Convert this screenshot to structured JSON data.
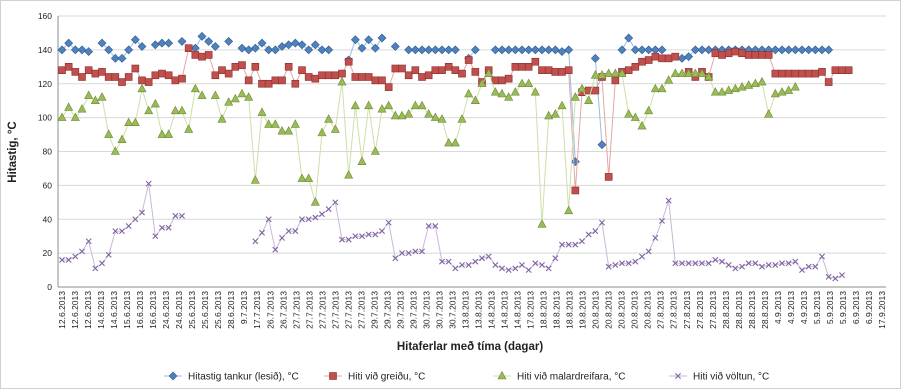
{
  "chart_data": {
    "type": "line",
    "title": "",
    "xlabel": "Hitaferlar með tíma (dagar)",
    "ylabel": "Hitastig, °C",
    "ylim": [
      0,
      160
    ],
    "yticks": [
      0,
      20,
      40,
      60,
      80,
      100,
      120,
      140,
      160
    ],
    "grid": "horizontal",
    "legend_position": "bottom",
    "colors": {
      "tank": "#4F81BD",
      "greidu": "#C0504D",
      "malar": "#9BBB59",
      "voltun": "#8064A2"
    },
    "x_tick_labels": [
      "12.6.2013",
      "12.6.2013",
      "12.6.2013",
      "14.6.2013",
      "14.6.2013",
      "15.6.2013",
      "16.6.2013",
      "16.6.2013",
      "24.6.2013",
      "24.6.2013",
      "25.6.2013",
      "25.6.2013",
      "25.6.2013",
      "28.6.2013",
      "9.7.2013",
      "17.7.2013",
      "26.7.2013",
      "26.7.2013",
      "27.7.2013",
      "27.7.2013",
      "27.7.2013",
      "27.7.2013",
      "27.7.2013",
      "27.7.2013",
      "29.7.2013",
      "29.7.2013",
      "29.7.2013",
      "29.7.2013",
      "30.7.2013",
      "30.7.2013",
      "30.7.2013",
      "13.8.2013",
      "13.8.2013",
      "14.8.2013",
      "14.8.2013",
      "14.8.2013",
      "17.8.2013",
      "18.8.2013",
      "18.8.2013",
      "18.8.2013",
      "19.8.2013",
      "20.8.2013",
      "20.8.2013",
      "20.8.2013",
      "20.8.2013",
      "20.8.2013",
      "27.8.2013",
      "27.8.2013",
      "27.8.2013",
      "27.8.2013",
      "27.8.2013",
      "28.8.2013",
      "28.8.2013",
      "28.8.2013",
      "28.8.2013",
      "4.9.2013",
      "4.9.2013",
      "4.9.2013",
      "5.9.2013",
      "5.9.2013",
      "5.9.2013",
      "6.9.2013",
      "6.9.2013",
      "17.9.2013"
    ],
    "series": [
      {
        "name": "Hitastig tankur (lesið), °C",
        "marker": "diamond",
        "values": [
          140,
          144,
          140,
          140,
          139,
          null,
          144,
          140,
          135,
          135,
          140,
          146,
          142,
          null,
          143,
          144,
          144,
          null,
          145,
          null,
          141,
          148,
          145,
          142,
          null,
          145,
          null,
          141,
          140,
          141,
          144,
          140,
          140,
          142,
          143,
          144,
          143,
          140,
          143,
          140,
          140,
          null,
          null,
          134,
          146,
          141,
          146,
          141,
          147,
          null,
          142,
          null,
          140,
          140,
          140,
          140,
          140,
          140,
          140,
          140,
          null,
          135,
          140,
          null,
          null,
          140,
          140,
          140,
          140,
          140,
          140,
          140,
          140,
          140,
          140,
          139,
          140,
          74,
          null,
          null,
          135,
          84,
          null,
          null,
          140,
          147,
          140,
          140,
          140,
          140,
          140,
          null,
          null,
          135,
          136,
          140,
          140,
          140,
          140,
          140,
          140,
          140,
          140,
          140,
          140,
          140,
          140,
          140,
          140,
          140,
          140,
          140,
          140,
          140,
          140,
          140,
          null,
          null,
          null,
          null,
          null
        ]
      },
      {
        "name": "Hiti við greiðu, °C",
        "marker": "square",
        "values": [
          128,
          130,
          127,
          124,
          128,
          126,
          127,
          124,
          124,
          121,
          124,
          129,
          122,
          121,
          125,
          126,
          125,
          122,
          123,
          141,
          137,
          136,
          137,
          125,
          128,
          126,
          130,
          131,
          122,
          130,
          120,
          120,
          122,
          122,
          130,
          120,
          128,
          124,
          123,
          125,
          125,
          125,
          126,
          133,
          124,
          124,
          124,
          122,
          122,
          118,
          129,
          129,
          125,
          128,
          124,
          125,
          128,
          128,
          130,
          128,
          126,
          134,
          127,
          121,
          128,
          122,
          122,
          123,
          130,
          130,
          130,
          133,
          128,
          128,
          127,
          127,
          128,
          57,
          115,
          116,
          116,
          124,
          65,
          122,
          127,
          128,
          130,
          133,
          134,
          136,
          135,
          135,
          136,
          null,
          127,
          124,
          127,
          124,
          138,
          137,
          138,
          139,
          138,
          137,
          137,
          137,
          137,
          126,
          126,
          126,
          126,
          126,
          126,
          126,
          127,
          121,
          128,
          128,
          128,
          null,
          null,
          null,
          null,
          null
        ]
      },
      {
        "name": "Hiti við malardreifara, °C",
        "marker": "triangle",
        "values": [
          100,
          106,
          100,
          105,
          113,
          110,
          112,
          90,
          80,
          87,
          97,
          97,
          117,
          104,
          108,
          90,
          90,
          104,
          104,
          93,
          117,
          113,
          null,
          113,
          99,
          109,
          111,
          114,
          112,
          63,
          103,
          96,
          96,
          92,
          92,
          96,
          64,
          64,
          50,
          91,
          99,
          93,
          121,
          66,
          107,
          74,
          107,
          80,
          105,
          107,
          101,
          101,
          102,
          107,
          107,
          102,
          100,
          99,
          85,
          85,
          99,
          114,
          110,
          120,
          126,
          115,
          114,
          112,
          115,
          120,
          120,
          115,
          37,
          101,
          102,
          107,
          45,
          112,
          117,
          110,
          125,
          125,
          126,
          126,
          126,
          102,
          100,
          95,
          104,
          117,
          117,
          122,
          126,
          126,
          126,
          126,
          126,
          124,
          115,
          115,
          116,
          117,
          118,
          119,
          120,
          121,
          102,
          114,
          115,
          116,
          118,
          null,
          null,
          null,
          null,
          null,
          null,
          null,
          null,
          null
        ]
      },
      {
        "name": "Hiti við völtun, °C",
        "marker": "x",
        "values": [
          16,
          16,
          18,
          21,
          27,
          11,
          14,
          19,
          33,
          33,
          36,
          40,
          44,
          61,
          30,
          35,
          35,
          42,
          42,
          null,
          null,
          null,
          null,
          null,
          null,
          null,
          null,
          null,
          null,
          27,
          32,
          40,
          22,
          29,
          33,
          33,
          40,
          40,
          41,
          43,
          46,
          50,
          28,
          28,
          30,
          30,
          31,
          31,
          33,
          38,
          17,
          20,
          20,
          21,
          21,
          36,
          36,
          15,
          15,
          11,
          13,
          13,
          15,
          17,
          18,
          13,
          11,
          10,
          11,
          13,
          10,
          14,
          13,
          11,
          17,
          25,
          25,
          25,
          27,
          31,
          33,
          38,
          12,
          13,
          14,
          14,
          15,
          18,
          21,
          29,
          39,
          51,
          14,
          14,
          14,
          14,
          14,
          14,
          16,
          15,
          13,
          11,
          12,
          14,
          14,
          12,
          13,
          13,
          14,
          14,
          15,
          10,
          12,
          12,
          18,
          6,
          5,
          7,
          null,
          null,
          null
        ]
      }
    ]
  }
}
